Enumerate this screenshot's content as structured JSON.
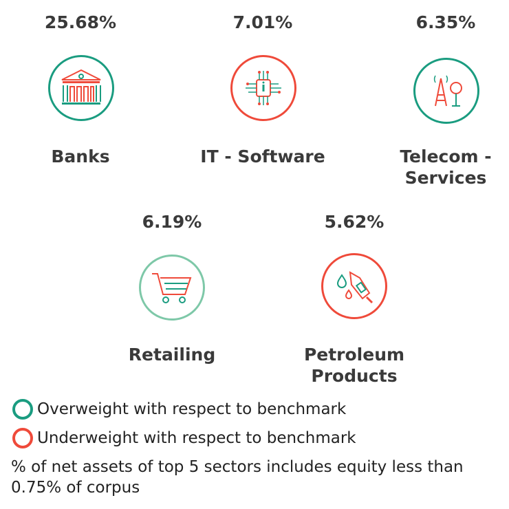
{
  "colors": {
    "overweight": "#1a9c80",
    "underweight": "#ef4a3a"
  },
  "sectors": [
    {
      "name": "Banks",
      "percent": "25.68%",
      "weight": "overweight",
      "icon": "bank-icon"
    },
    {
      "name": "IT - Software",
      "percent": "7.01%",
      "weight": "underweight",
      "icon": "chip-icon"
    },
    {
      "name": "Telecom - Services",
      "percent": "6.35%",
      "weight": "overweight",
      "icon": "telecom-tower-icon"
    },
    {
      "name": "Retailing",
      "percent": "6.19%",
      "weight": "overweight",
      "icon": "shopping-cart-icon"
    },
    {
      "name": "Petroleum Products",
      "percent": "5.62%",
      "weight": "underweight",
      "icon": "fuel-nozzle-icon"
    }
  ],
  "legend": {
    "overweight": "Overweight with respect to benchmark",
    "underweight": "Underweight with respect to benchmark"
  },
  "note": "% of net assets of top 5 sectors includes equity less than 0.75% of corpus"
}
